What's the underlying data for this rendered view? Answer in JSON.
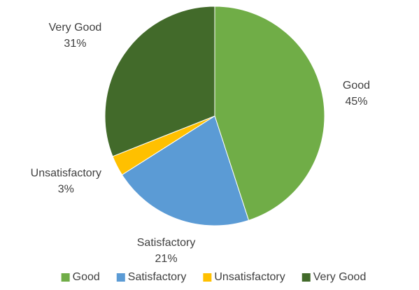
{
  "chart_data": {
    "type": "pie",
    "categories": [
      "Good",
      "Satisfactory",
      "Unsatisfactory",
      "Very Good"
    ],
    "values": [
      45,
      21,
      3,
      31
    ],
    "value_labels": [
      "45%",
      "21%",
      "3%",
      "31%"
    ],
    "colors": [
      "#70ad47",
      "#5b9bd5",
      "#ffc000",
      "#426a2a"
    ],
    "legend": "bottom"
  }
}
